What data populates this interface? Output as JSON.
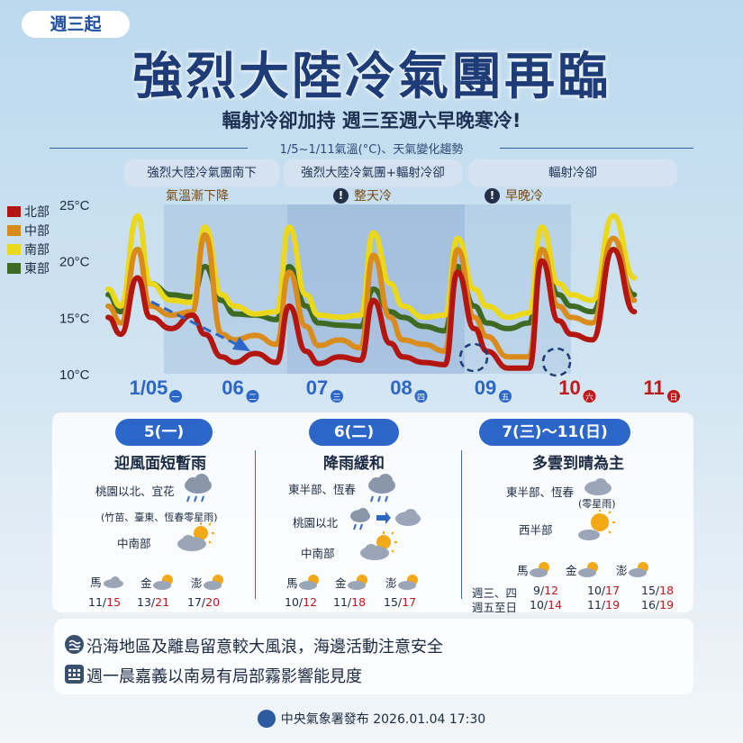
{
  "badge": "週三起",
  "title": "強烈大陸冷氣團再臨",
  "subtitle": "輻射冷卻加持 週三至週六早晚寒冷!",
  "chart_caption": "1/5~1/11氣溫(°C)、天氣變化趨勢",
  "phases": [
    {
      "label": "強烈大陸冷氣團南下",
      "note": "氣溫漸下降"
    },
    {
      "label": "強烈大陸冷氣團+輻射冷卻",
      "note": "整天冷"
    },
    {
      "label": "輻射冷卻",
      "note": "早晚冷"
    }
  ],
  "colors": {
    "north": "#b3150f",
    "central": "#d98b1c",
    "south": "#ecd81a",
    "east": "#3d6b23",
    "accent": "#2c66c8",
    "holiday": "#c0181b",
    "title": "#1d3c78"
  },
  "chart_data": {
    "type": "line",
    "title": "1/5~1/11氣溫(°C)、天氣變化趨勢",
    "xlabel": "",
    "ylabel": "",
    "ylim": [
      10,
      25
    ],
    "yticks": [
      "25°C",
      "20°C",
      "15°C",
      "10°C"
    ],
    "ytick_values": [
      25,
      20,
      15,
      10
    ],
    "x": [
      0,
      0.15,
      0.35,
      0.5,
      0.75,
      1,
      1.15,
      1.35,
      1.5,
      1.75,
      2,
      2.15,
      2.35,
      2.5,
      2.75,
      3,
      3.15,
      3.35,
      3.5,
      3.75,
      4,
      4.15,
      4.35,
      4.5,
      4.75,
      5,
      5.15,
      5.35,
      5.5,
      5.75,
      6,
      6.25
    ],
    "categories": [
      "1/05",
      "06",
      "07",
      "08",
      "09",
      "10",
      "11"
    ],
    "weekdays": [
      "一",
      "二",
      "三",
      "四",
      "五",
      "六",
      "日"
    ],
    "series": [
      {
        "name": "北部",
        "values": [
          15,
          13.5,
          18.5,
          15,
          14,
          15.2,
          13.5,
          11.5,
          11,
          11.8,
          11,
          16,
          12,
          10.9,
          11.5,
          11.2,
          16.5,
          12.7,
          11.5,
          11,
          10.8,
          19,
          14,
          12,
          10.5,
          10.5,
          20,
          14.7,
          13.5,
          13,
          21,
          15.5
        ]
      },
      {
        "name": "中部",
        "values": [
          16,
          14.5,
          21,
          16,
          15.2,
          15.5,
          22.3,
          13.5,
          13,
          13.4,
          12.6,
          19,
          14.2,
          12.5,
          13,
          12.3,
          20.5,
          15,
          13,
          12.6,
          12,
          21,
          15,
          13.3,
          11.5,
          11.5,
          21,
          16,
          15,
          14.5,
          22,
          16.5
        ]
      },
      {
        "name": "南部",
        "values": [
          17.5,
          16,
          24,
          18,
          16.5,
          16.3,
          23,
          17,
          16,
          15.3,
          15.5,
          23,
          17,
          15.2,
          15,
          15.2,
          22.5,
          18,
          16,
          15,
          15.2,
          22,
          17.5,
          16,
          15,
          15.4,
          23,
          18,
          17,
          16.5,
          24,
          18.5
        ]
      },
      {
        "name": "東部",
        "values": [
          17,
          15.5,
          21,
          18,
          17,
          16.8,
          19.5,
          16.5,
          15.3,
          15.2,
          14.8,
          19.5,
          16,
          14.5,
          14.3,
          14.2,
          17.5,
          15.5,
          15,
          14.2,
          13.8,
          19.5,
          16,
          14.5,
          14,
          14.5,
          21,
          17,
          16,
          15.5,
          21,
          17
        ]
      }
    ],
    "legend": "left",
    "grid": false
  },
  "forecast": {
    "columns": [
      {
        "date": "5(一)",
        "headline": "迎風面短暫雨",
        "rows": [
          {
            "region": "桃園以北、宜花",
            "icon": "rain-cloud-icon"
          },
          {
            "region": "(竹苗、臺東、恆春零星雨)",
            "icon": ""
          },
          {
            "region": "中南部",
            "icon": "partly-cloudy-icon"
          }
        ],
        "islands": [
          {
            "name": "馬",
            "icon": "cloud-icon",
            "low": "11",
            "high": "15"
          },
          {
            "name": "金",
            "icon": "partly-cloudy-icon",
            "low": "13",
            "high": "21"
          },
          {
            "name": "澎",
            "icon": "partly-cloudy-icon",
            "low": "17",
            "high": "20"
          }
        ]
      },
      {
        "date": "6(二)",
        "headline": "降雨緩和",
        "rows": [
          {
            "region": "東半部、恆春",
            "icon": "rain-cloud-icon"
          },
          {
            "region": "桃園以北",
            "icon": "rain-to-cloud-icon"
          },
          {
            "region": "中南部",
            "icon": "partly-cloudy-icon"
          }
        ],
        "islands": [
          {
            "name": "馬",
            "icon": "partly-cloudy-icon",
            "low": "10",
            "high": "12"
          },
          {
            "name": "金",
            "icon": "partly-cloudy-icon",
            "low": "11",
            "high": "18"
          },
          {
            "name": "澎",
            "icon": "partly-cloudy-icon",
            "low": "15",
            "high": "17"
          }
        ]
      },
      {
        "date": "7(三)～11(日)",
        "headline": "多雲到晴為主",
        "rows": [
          {
            "region": "東半部、恆春",
            "icon": "cloud-icon",
            "sub": "(零星雨)"
          },
          {
            "region": "西半部",
            "icon": "partly-cloudy-icon"
          }
        ],
        "islands": [
          {
            "name": "馬",
            "icon": "partly-cloudy-icon"
          },
          {
            "name": "金",
            "icon": "partly-cloudy-icon"
          },
          {
            "name": "澎",
            "icon": "partly-cloudy-icon"
          }
        ],
        "periods": [
          {
            "label": "週三、四",
            "ma": {
              "low": "9",
              "high": "12"
            },
            "jin": {
              "low": "10",
              "high": "17"
            },
            "peng": {
              "low": "15",
              "high": "18"
            }
          },
          {
            "label": "週五至日",
            "ma": {
              "low": "10",
              "high": "14"
            },
            "jin": {
              "low": "11",
              "high": "19"
            },
            "peng": {
              "low": "16",
              "high": "19"
            }
          }
        ]
      }
    ]
  },
  "advisories": [
    {
      "icon": "wave-wind-icon",
      "text": "沿海地區及離島留意較大風浪，海邊活動注意安全"
    },
    {
      "icon": "fog-icon",
      "text": "週一晨嘉義以南易有局部霧影響能見度"
    }
  ],
  "footer": "中央氣象署發布 2026.01.04 17:30"
}
